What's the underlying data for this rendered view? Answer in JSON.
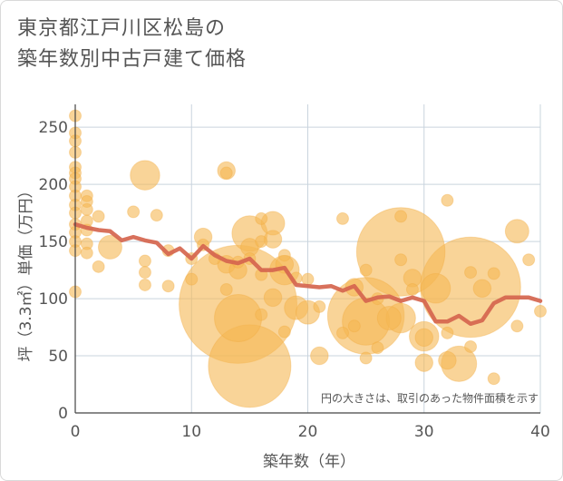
{
  "chart_data": {
    "type": "scatter",
    "title_lines": [
      "東京都江戸川区松島の",
      "築年数別中古戸建て価格"
    ],
    "xlabel": "築年数（年）",
    "ylabel": "坪（3.3㎡）単価（万円）",
    "note": "円の大きさは、取引のあった物件面積を示す",
    "xlim": [
      0,
      40
    ],
    "ylim": [
      0,
      270
    ],
    "xticks": [
      0,
      10,
      20,
      30,
      40
    ],
    "yticks": [
      0,
      50,
      100,
      150,
      200,
      250
    ],
    "grid": true,
    "colors": {
      "bubble": "#f5b754",
      "line": "#d5654e",
      "grid": "#c9d4de"
    },
    "points": [
      {
        "x": 0,
        "y": 260,
        "s": 1
      },
      {
        "x": 0,
        "y": 245,
        "s": 1
      },
      {
        "x": 0,
        "y": 238,
        "s": 1
      },
      {
        "x": 0,
        "y": 228,
        "s": 1
      },
      {
        "x": 0,
        "y": 215,
        "s": 1
      },
      {
        "x": 0,
        "y": 210,
        "s": 1
      },
      {
        "x": 0,
        "y": 205,
        "s": 1
      },
      {
        "x": 0,
        "y": 198,
        "s": 1
      },
      {
        "x": 0,
        "y": 190,
        "s": 1
      },
      {
        "x": 0,
        "y": 182,
        "s": 1
      },
      {
        "x": 0,
        "y": 175,
        "s": 1
      },
      {
        "x": 0,
        "y": 165,
        "s": 1
      },
      {
        "x": 0,
        "y": 158,
        "s": 1
      },
      {
        "x": 0,
        "y": 150,
        "s": 1
      },
      {
        "x": 0,
        "y": 142,
        "s": 1
      },
      {
        "x": 0,
        "y": 106,
        "s": 1
      },
      {
        "x": 1,
        "y": 190,
        "s": 1
      },
      {
        "x": 1,
        "y": 185,
        "s": 1
      },
      {
        "x": 1,
        "y": 178,
        "s": 1
      },
      {
        "x": 1,
        "y": 168,
        "s": 1
      },
      {
        "x": 1,
        "y": 160,
        "s": 1
      },
      {
        "x": 1,
        "y": 148,
        "s": 1
      },
      {
        "x": 1,
        "y": 140,
        "s": 1
      },
      {
        "x": 2,
        "y": 172,
        "s": 1
      },
      {
        "x": 2,
        "y": 128,
        "s": 1
      },
      {
        "x": 3,
        "y": 145,
        "s": 2
      },
      {
        "x": 5,
        "y": 176,
        "s": 1
      },
      {
        "x": 6,
        "y": 208,
        "s": 2.5
      },
      {
        "x": 6,
        "y": 133,
        "s": 1
      },
      {
        "x": 6,
        "y": 123,
        "s": 1
      },
      {
        "x": 6,
        "y": 112,
        "s": 1
      },
      {
        "x": 7,
        "y": 173,
        "s": 1
      },
      {
        "x": 8,
        "y": 142,
        "s": 1
      },
      {
        "x": 8,
        "y": 111,
        "s": 1
      },
      {
        "x": 10,
        "y": 135,
        "s": 1
      },
      {
        "x": 10,
        "y": 117,
        "s": 1
      },
      {
        "x": 11,
        "y": 154,
        "s": 1.5
      },
      {
        "x": 11,
        "y": 147,
        "s": 1
      },
      {
        "x": 12,
        "y": 135,
        "s": 1
      },
      {
        "x": 13,
        "y": 212,
        "s": 1.5
      },
      {
        "x": 13,
        "y": 210,
        "s": 1
      },
      {
        "x": 13,
        "y": 130,
        "s": 1.5
      },
      {
        "x": 13,
        "y": 108,
        "s": 1
      },
      {
        "x": 14,
        "y": 95,
        "s": 10
      },
      {
        "x": 14,
        "y": 83,
        "s": 4
      },
      {
        "x": 14,
        "y": 125,
        "s": 1.5
      },
      {
        "x": 14,
        "y": 132,
        "s": 1
      },
      {
        "x": 15,
        "y": 157,
        "s": 3
      },
      {
        "x": 15,
        "y": 145,
        "s": 1.5
      },
      {
        "x": 15,
        "y": 41,
        "s": 7
      },
      {
        "x": 15,
        "y": 135,
        "s": 1
      },
      {
        "x": 16,
        "y": 170,
        "s": 1
      },
      {
        "x": 16,
        "y": 150,
        "s": 1
      },
      {
        "x": 16,
        "y": 86,
        "s": 1
      },
      {
        "x": 16,
        "y": 121,
        "s": 1
      },
      {
        "x": 17,
        "y": 166,
        "s": 2
      },
      {
        "x": 17,
        "y": 152,
        "s": 1.5
      },
      {
        "x": 17,
        "y": 101,
        "s": 1.5
      },
      {
        "x": 18,
        "y": 138,
        "s": 1
      },
      {
        "x": 18,
        "y": 130,
        "s": 1.5
      },
      {
        "x": 18,
        "y": 125,
        "s": 2.5
      },
      {
        "x": 18,
        "y": 71,
        "s": 1
      },
      {
        "x": 19,
        "y": 118,
        "s": 1
      },
      {
        "x": 19,
        "y": 92,
        "s": 2
      },
      {
        "x": 20,
        "y": 117,
        "s": 1
      },
      {
        "x": 20,
        "y": 88,
        "s": 2
      },
      {
        "x": 21,
        "y": 93,
        "s": 1
      },
      {
        "x": 21,
        "y": 50,
        "s": 1.5
      },
      {
        "x": 23,
        "y": 170,
        "s": 1
      },
      {
        "x": 23,
        "y": 70,
        "s": 1
      },
      {
        "x": 24,
        "y": 110,
        "s": 1.5
      },
      {
        "x": 24,
        "y": 76,
        "s": 1
      },
      {
        "x": 25,
        "y": 125,
        "s": 1
      },
      {
        "x": 25,
        "y": 85,
        "s": 6.5
      },
      {
        "x": 25,
        "y": 80,
        "s": 4
      },
      {
        "x": 25,
        "y": 48,
        "s": 1
      },
      {
        "x": 26,
        "y": 100,
        "s": 1
      },
      {
        "x": 26,
        "y": 57,
        "s": 1
      },
      {
        "x": 27,
        "y": 83,
        "s": 2
      },
      {
        "x": 28,
        "y": 172,
        "s": 1
      },
      {
        "x": 28,
        "y": 141,
        "s": 7.5
      },
      {
        "x": 28,
        "y": 134,
        "s": 1
      },
      {
        "x": 28,
        "y": 83,
        "s": 2.5
      },
      {
        "x": 29,
        "y": 118,
        "s": 1.5
      },
      {
        "x": 29,
        "y": 108,
        "s": 1
      },
      {
        "x": 30,
        "y": 67,
        "s": 2.5
      },
      {
        "x": 30,
        "y": 66,
        "s": 1.5
      },
      {
        "x": 30,
        "y": 44,
        "s": 1.5
      },
      {
        "x": 31,
        "y": 109,
        "s": 2.5
      },
      {
        "x": 32,
        "y": 186,
        "s": 1
      },
      {
        "x": 32,
        "y": 70,
        "s": 1
      },
      {
        "x": 32,
        "y": 46,
        "s": 1.5
      },
      {
        "x": 33,
        "y": 43,
        "s": 3
      },
      {
        "x": 34,
        "y": 110,
        "s": 8.5
      },
      {
        "x": 34,
        "y": 123,
        "s": 1
      },
      {
        "x": 34,
        "y": 58,
        "s": 1
      },
      {
        "x": 35,
        "y": 109,
        "s": 1.5
      },
      {
        "x": 36,
        "y": 122,
        "s": 1
      },
      {
        "x": 36,
        "y": 30,
        "s": 1
      },
      {
        "x": 38,
        "y": 159,
        "s": 2
      },
      {
        "x": 38,
        "y": 76,
        "s": 1
      },
      {
        "x": 39,
        "y": 134,
        "s": 1
      },
      {
        "x": 40,
        "y": 89,
        "s": 1
      }
    ],
    "trend": [
      {
        "x": 0,
        "y": 165
      },
      {
        "x": 1,
        "y": 162
      },
      {
        "x": 2,
        "y": 160
      },
      {
        "x": 3,
        "y": 159
      },
      {
        "x": 4,
        "y": 151
      },
      {
        "x": 5,
        "y": 154
      },
      {
        "x": 6,
        "y": 151
      },
      {
        "x": 7,
        "y": 149
      },
      {
        "x": 8,
        "y": 139
      },
      {
        "x": 9,
        "y": 144
      },
      {
        "x": 10,
        "y": 135
      },
      {
        "x": 11,
        "y": 146
      },
      {
        "x": 12,
        "y": 138
      },
      {
        "x": 13,
        "y": 133
      },
      {
        "x": 14,
        "y": 131
      },
      {
        "x": 15,
        "y": 135
      },
      {
        "x": 16,
        "y": 125
      },
      {
        "x": 17,
        "y": 125
      },
      {
        "x": 18,
        "y": 127
      },
      {
        "x": 19,
        "y": 112
      },
      {
        "x": 20,
        "y": 111
      },
      {
        "x": 21,
        "y": 110
      },
      {
        "x": 22,
        "y": 111
      },
      {
        "x": 23,
        "y": 107
      },
      {
        "x": 24,
        "y": 111
      },
      {
        "x": 25,
        "y": 98
      },
      {
        "x": 26,
        "y": 101
      },
      {
        "x": 27,
        "y": 102
      },
      {
        "x": 28,
        "y": 98
      },
      {
        "x": 29,
        "y": 101
      },
      {
        "x": 30,
        "y": 98
      },
      {
        "x": 31,
        "y": 80
      },
      {
        "x": 32,
        "y": 80
      },
      {
        "x": 33,
        "y": 85
      },
      {
        "x": 34,
        "y": 78
      },
      {
        "x": 35,
        "y": 81
      },
      {
        "x": 36,
        "y": 96
      },
      {
        "x": 37,
        "y": 101
      },
      {
        "x": 38,
        "y": 101
      },
      {
        "x": 39,
        "y": 101
      },
      {
        "x": 40,
        "y": 98
      }
    ]
  }
}
